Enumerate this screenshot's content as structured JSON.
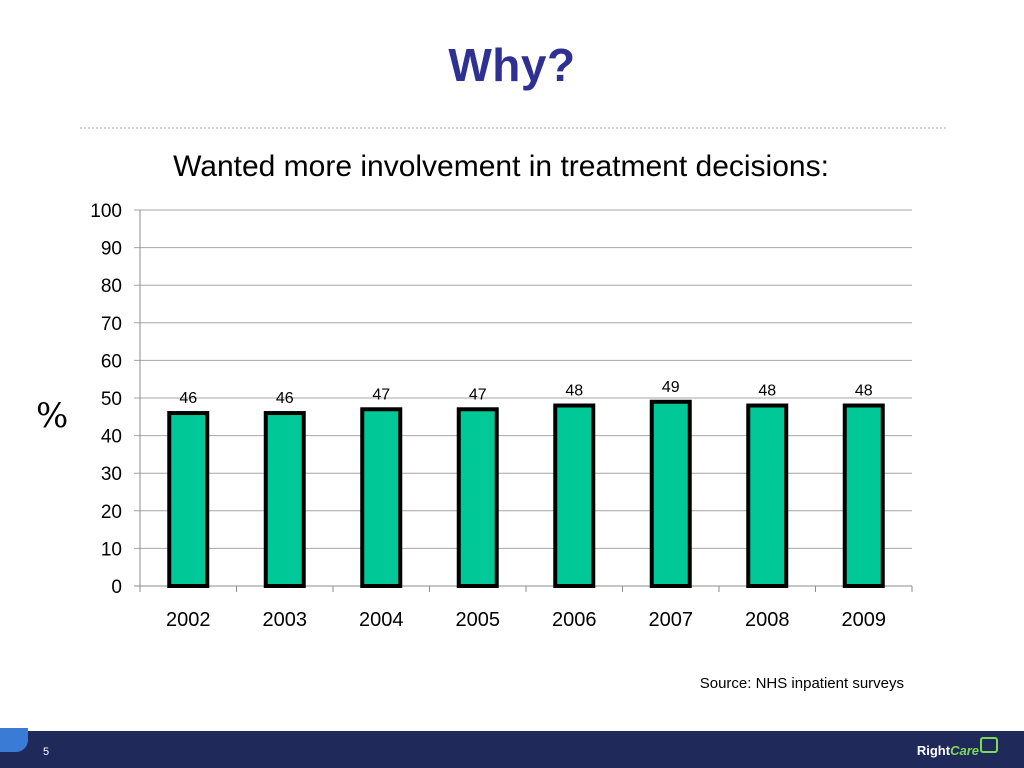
{
  "slide": {
    "title": "Why?",
    "source": "Source: NHS inpatient surveys",
    "page_number": "5",
    "logo": {
      "part1": "Right",
      "part2": "Care"
    }
  },
  "colors": {
    "title": "#2e3192",
    "bar_fill": "#00c896",
    "bar_stroke": "#000000",
    "gridline": "#a6a6a6",
    "footer": "#1f2a5a"
  },
  "chart_data": {
    "type": "bar",
    "title": "Wanted more involvement in treatment decisions:",
    "ylabel": "%",
    "xlabel": "",
    "categories": [
      "2002",
      "2003",
      "2004",
      "2005",
      "2006",
      "2007",
      "2008",
      "2009"
    ],
    "values": [
      46,
      46,
      47,
      47,
      48,
      49,
      48,
      48
    ],
    "ylim": [
      0,
      100
    ],
    "yticks": [
      0,
      10,
      20,
      30,
      40,
      50,
      60,
      70,
      80,
      90,
      100
    ],
    "grid": true,
    "legend": "none",
    "data_labels": true
  }
}
